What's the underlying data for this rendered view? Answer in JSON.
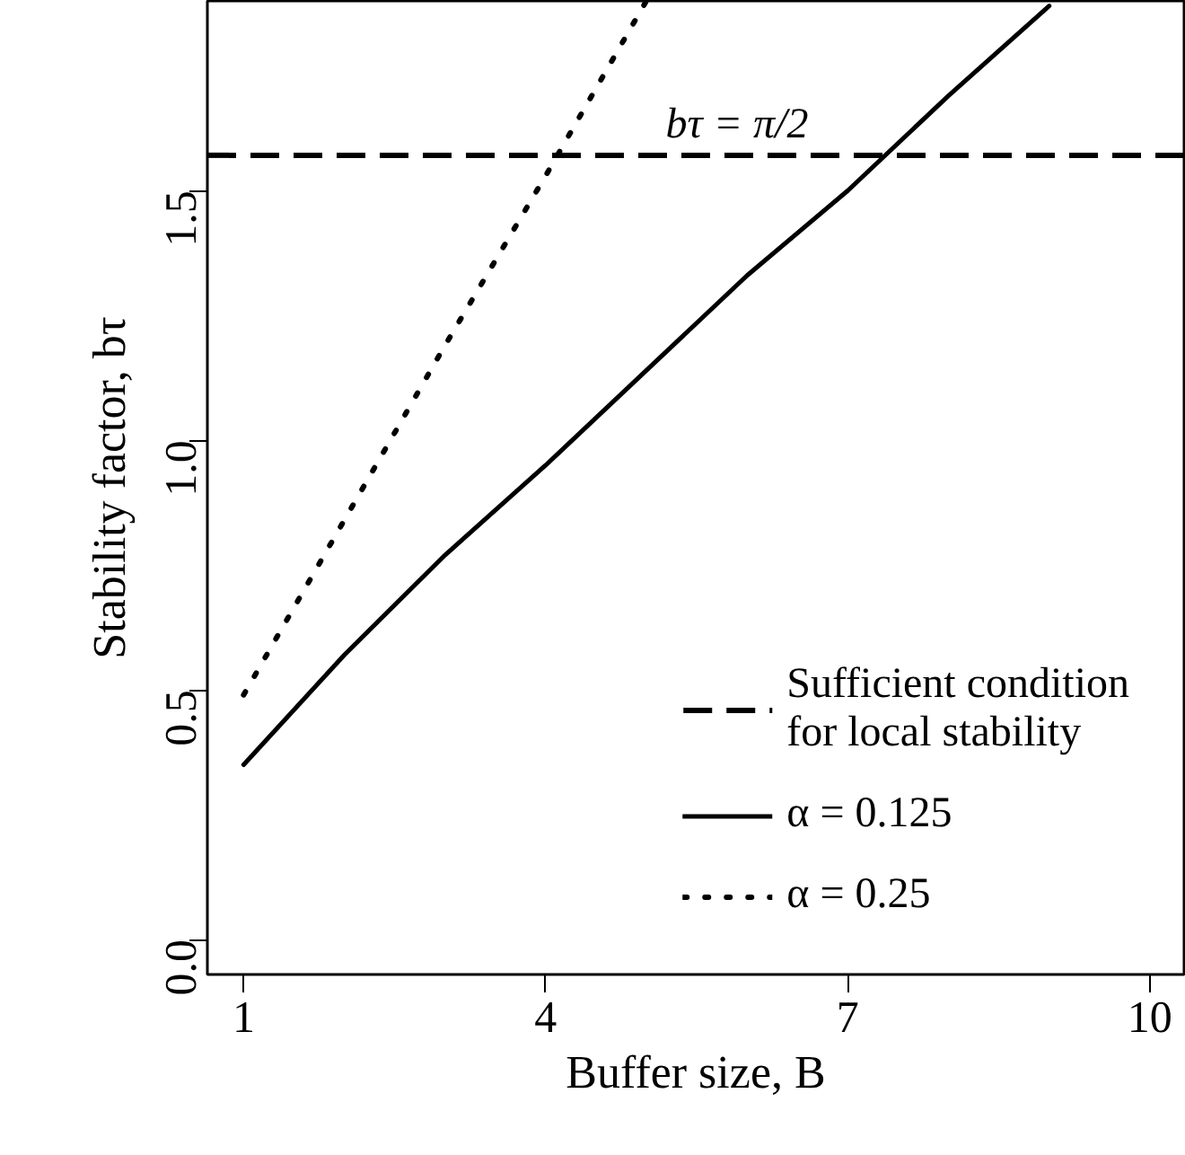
{
  "chart_data": {
    "type": "line",
    "xlabel": "Buffer size, B",
    "ylabel": "Stability factor, bτ",
    "x": [
      1,
      2,
      3,
      4,
      5,
      6,
      7,
      8,
      9
    ],
    "series": [
      {
        "name": "α = 0.125",
        "color": "#000000",
        "line_style": "solid",
        "values": [
          0.35,
          0.57,
          0.77,
          0.95,
          1.14,
          1.33,
          1.5,
          1.69,
          1.87
        ]
      },
      {
        "name": "α = 0.25",
        "color": "#000000",
        "line_style": "dotted",
        "x": [
          1,
          2,
          3,
          4,
          5
        ],
        "values": [
          0.49,
          0.84,
          1.19,
          1.53,
          1.88
        ]
      }
    ],
    "ref_lines": [
      {
        "axis": "y",
        "value": 1.5708,
        "label": "Sufficient condition\nfor local stability",
        "line_style": "dashed",
        "color": "#000000"
      }
    ],
    "annotations": [
      {
        "text": "bτ = π/2",
        "x": 5.9,
        "y": 1.5708
      }
    ],
    "xlim": [
      0.64,
      10.34
    ],
    "ylim": [
      -0.07,
      1.88
    ],
    "xticks": [
      1,
      4,
      7,
      10
    ],
    "yticks": [
      {
        "value": 0,
        "label": "0.0"
      },
      {
        "value": 0.5,
        "label": "0.5"
      },
      {
        "value": 1,
        "label": "1.0"
      },
      {
        "value": 1.5,
        "label": "1.5"
      }
    ],
    "grid": false,
    "legend": "bottom right",
    "marker": "none"
  }
}
